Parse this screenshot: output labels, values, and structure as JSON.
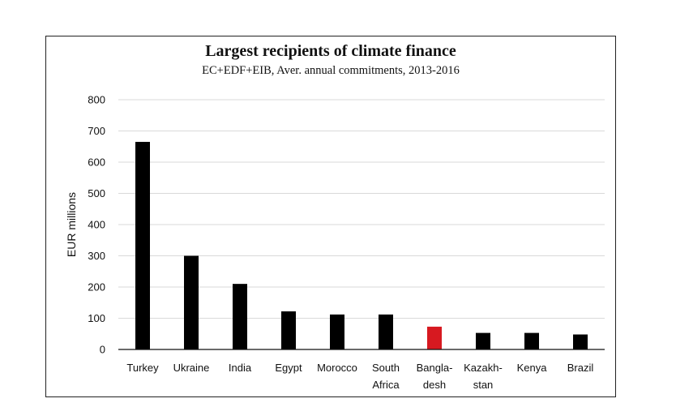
{
  "chart_data": {
    "type": "bar",
    "title": "Largest recipients of climate finance",
    "subtitle": "EC+EDF+EIB, Aver. annual commitments, 2013-2016",
    "ylabel": "EUR millions",
    "xlabel": "",
    "ylim": [
      0,
      800
    ],
    "yticks": [
      0,
      100,
      200,
      300,
      400,
      500,
      600,
      700,
      800
    ],
    "grid": true,
    "categories": [
      [
        "Turkey"
      ],
      [
        "Ukraine"
      ],
      [
        "India"
      ],
      [
        "Egypt"
      ],
      [
        "Morocco"
      ],
      [
        "South",
        "Africa"
      ],
      [
        "Bangla-",
        "desh"
      ],
      [
        "Kazakh-",
        "stan"
      ],
      [
        "Kenya"
      ],
      [
        "Brazil"
      ]
    ],
    "values": [
      665,
      300,
      210,
      122,
      112,
      112,
      73,
      53,
      53,
      48
    ],
    "colors": {
      "default": "#000000",
      "highlight": "#d71920",
      "highlight_category": "Bangla-desh"
    }
  }
}
